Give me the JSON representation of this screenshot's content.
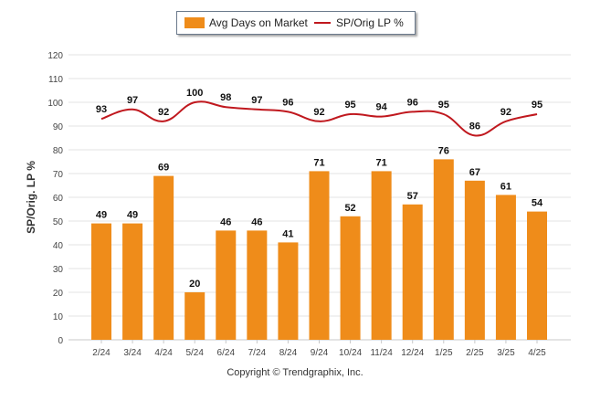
{
  "legend": {
    "bar_label": "Avg Days on Market",
    "line_label": "SP/Orig LP %"
  },
  "copyright": "Copyright © Trendgraphix, Inc.",
  "chart_data": {
    "type": "bar",
    "categories": [
      "2/24",
      "3/24",
      "4/24",
      "5/24",
      "6/24",
      "7/24",
      "8/24",
      "9/24",
      "10/24",
      "11/24",
      "12/24",
      "1/25",
      "2/25",
      "3/25",
      "4/25"
    ],
    "series": [
      {
        "name": "Avg Days on Market",
        "type": "bar",
        "color": "#ef8c1a",
        "values": [
          49,
          49,
          69,
          20,
          46,
          46,
          41,
          71,
          52,
          71,
          57,
          76,
          67,
          61,
          54
        ]
      },
      {
        "name": "SP/Orig LP %",
        "type": "line",
        "color": "#c0181e",
        "values": [
          93,
          97,
          92,
          100,
          98,
          97,
          96,
          92,
          95,
          94,
          96,
          95,
          86,
          92,
          95
        ]
      }
    ],
    "ylabel": "SP/Orig. LP %",
    "xlabel": "",
    "ylim": [
      0,
      120
    ],
    "yticks": [
      0,
      10,
      20,
      30,
      40,
      50,
      60,
      70,
      80,
      90,
      100,
      110,
      120
    ],
    "grid": true,
    "legend_position": "top"
  }
}
